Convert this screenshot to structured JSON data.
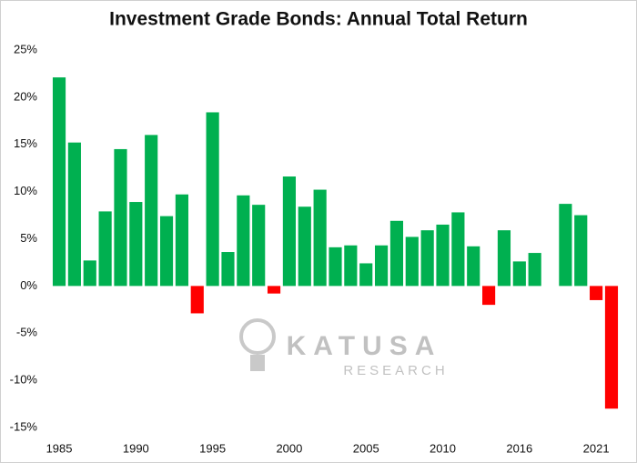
{
  "chart_data": {
    "type": "bar",
    "title": "Investment Grade Bonds: Annual Total Return",
    "categories": [
      "1985",
      null,
      null,
      null,
      null,
      "1990",
      null,
      null,
      null,
      null,
      "1995",
      null,
      null,
      null,
      null,
      "2000",
      null,
      null,
      null,
      null,
      "2005",
      null,
      null,
      null,
      null,
      "2010",
      null,
      null,
      null,
      null,
      "2016",
      null,
      null,
      null,
      null,
      "2021",
      null
    ],
    "values": [
      22.1,
      15.2,
      2.7,
      7.9,
      14.5,
      8.9,
      16.0,
      7.4,
      9.7,
      -2.9,
      18.4,
      3.6,
      9.6,
      8.6,
      -0.8,
      11.6,
      8.4,
      10.2,
      4.1,
      4.3,
      2.4,
      4.3,
      6.9,
      5.2,
      5.9,
      6.5,
      7.8,
      4.2,
      -2.0,
      5.9,
      2.6,
      3.5,
      null,
      8.7,
      7.5,
      -1.5,
      -13.0
    ],
    "color": "#00b050",
    "negative_color": "#ff0000",
    "ylim": [
      -15,
      25
    ],
    "yticks": [
      {
        "value": -15,
        "label": "-15%"
      },
      {
        "value": -10,
        "label": "-10%"
      },
      {
        "value": -5,
        "label": "-5%"
      },
      {
        "value": 0,
        "label": "0%"
      },
      {
        "value": 5,
        "label": "5%"
      },
      {
        "value": 10,
        "label": "10%"
      },
      {
        "value": 15,
        "label": "15%"
      },
      {
        "value": 20,
        "label": "20%"
      },
      {
        "value": 25,
        "label": "25%"
      }
    ],
    "grid": false,
    "watermark": [
      "KATUSA",
      "RESEARCH"
    ]
  }
}
